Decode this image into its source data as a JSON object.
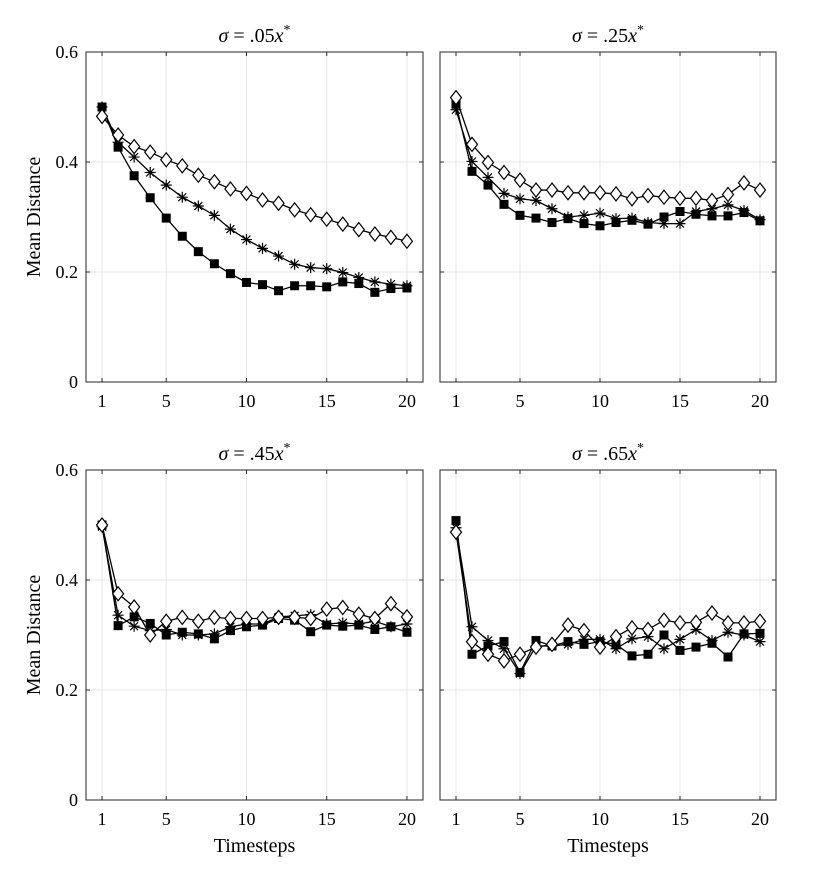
{
  "chart_data": [
    {
      "type": "line",
      "title": {
        "prefix": "σ = .05",
        "var": "x",
        "sup": "*"
      },
      "xlabel": "",
      "ylabel": "Mean Distance",
      "xlim": [
        0,
        21
      ],
      "ylim": [
        0,
        0.6
      ],
      "xticks": [
        1,
        5,
        10,
        15,
        20
      ],
      "yticks": [
        0,
        0.2,
        0.4,
        0.6
      ],
      "ytick_labels": [
        "0",
        "0.2",
        "0.4",
        "0.6"
      ],
      "grid": true,
      "x": [
        1,
        2,
        3,
        4,
        5,
        6,
        7,
        8,
        9,
        10,
        11,
        12,
        13,
        14,
        15,
        16,
        17,
        18,
        19,
        20
      ],
      "series": [
        {
          "marker": "square",
          "values": [
            0.5,
            0.427,
            0.375,
            0.335,
            0.298,
            0.265,
            0.237,
            0.215,
            0.197,
            0.181,
            0.177,
            0.166,
            0.175,
            0.175,
            0.173,
            0.182,
            0.179,
            0.163,
            0.17,
            0.171
          ]
        },
        {
          "marker": "asterisk",
          "values": [
            0.5,
            0.436,
            0.409,
            0.381,
            0.358,
            0.336,
            0.32,
            0.303,
            0.278,
            0.259,
            0.243,
            0.229,
            0.214,
            0.208,
            0.206,
            0.199,
            0.19,
            0.182,
            0.178,
            0.175
          ]
        },
        {
          "marker": "diamond",
          "values": [
            0.483,
            0.449,
            0.428,
            0.418,
            0.404,
            0.393,
            0.376,
            0.364,
            0.351,
            0.343,
            0.331,
            0.325,
            0.313,
            0.304,
            0.296,
            0.287,
            0.277,
            0.269,
            0.263,
            0.256
          ]
        }
      ]
    },
    {
      "type": "line",
      "title": {
        "prefix": "σ = .25",
        "var": "x",
        "sup": "*"
      },
      "xlabel": "",
      "ylabel": "",
      "xlim": [
        0,
        21
      ],
      "ylim": [
        0,
        0.6
      ],
      "xticks": [
        1,
        5,
        10,
        15,
        20
      ],
      "yticks": [
        0,
        0.2,
        0.4,
        0.6
      ],
      "ytick_labels": [],
      "grid": true,
      "x": [
        1,
        2,
        3,
        4,
        5,
        6,
        7,
        8,
        9,
        10,
        11,
        12,
        13,
        14,
        15,
        16,
        17,
        18,
        19,
        20
      ],
      "series": [
        {
          "marker": "square",
          "values": [
            0.505,
            0.383,
            0.358,
            0.323,
            0.303,
            0.298,
            0.29,
            0.297,
            0.288,
            0.284,
            0.29,
            0.294,
            0.287,
            0.3,
            0.31,
            0.305,
            0.302,
            0.302,
            0.308,
            0.293
          ]
        },
        {
          "marker": "asterisk",
          "values": [
            0.495,
            0.401,
            0.372,
            0.343,
            0.333,
            0.33,
            0.315,
            0.3,
            0.303,
            0.307,
            0.297,
            0.298,
            0.29,
            0.288,
            0.288,
            0.31,
            0.315,
            0.322,
            0.312,
            0.295
          ]
        },
        {
          "marker": "diamond",
          "values": [
            0.517,
            0.432,
            0.399,
            0.381,
            0.367,
            0.349,
            0.349,
            0.344,
            0.344,
            0.344,
            0.342,
            0.333,
            0.339,
            0.336,
            0.334,
            0.334,
            0.33,
            0.341,
            0.362,
            0.349
          ]
        }
      ]
    },
    {
      "type": "line",
      "title": {
        "prefix": "σ = .45",
        "var": "x",
        "sup": "*"
      },
      "xlabel": "Timesteps",
      "ylabel": "Mean Distance",
      "xlim": [
        0,
        21
      ],
      "ylim": [
        0,
        0.6
      ],
      "xticks": [
        1,
        5,
        10,
        15,
        20
      ],
      "yticks": [
        0,
        0.2,
        0.4,
        0.6
      ],
      "ytick_labels": [
        "0",
        "0.2",
        "0.4",
        "0.6"
      ],
      "grid": true,
      "x": [
        1,
        2,
        3,
        4,
        5,
        6,
        7,
        8,
        9,
        10,
        11,
        12,
        13,
        14,
        15,
        16,
        17,
        18,
        19,
        20
      ],
      "series": [
        {
          "marker": "square",
          "values": [
            0.5,
            0.317,
            0.333,
            0.321,
            0.3,
            0.305,
            0.302,
            0.293,
            0.308,
            0.315,
            0.318,
            0.33,
            0.327,
            0.306,
            0.318,
            0.316,
            0.318,
            0.31,
            0.315,
            0.305
          ]
        },
        {
          "marker": "asterisk",
          "values": [
            0.497,
            0.336,
            0.316,
            0.308,
            0.31,
            0.3,
            0.3,
            0.302,
            0.315,
            0.32,
            0.32,
            0.333,
            0.335,
            0.337,
            0.32,
            0.322,
            0.32,
            0.325,
            0.315,
            0.32
          ]
        },
        {
          "marker": "diamond",
          "values": [
            0.5,
            0.375,
            0.351,
            0.3,
            0.325,
            0.332,
            0.325,
            0.332,
            0.33,
            0.33,
            0.33,
            0.332,
            0.332,
            0.33,
            0.347,
            0.35,
            0.338,
            0.33,
            0.357,
            0.333
          ]
        }
      ]
    },
    {
      "type": "line",
      "title": {
        "prefix": "σ = .65",
        "var": "x",
        "sup": "*"
      },
      "xlabel": "Timesteps",
      "ylabel": "",
      "xlim": [
        0,
        21
      ],
      "ylim": [
        0,
        0.6
      ],
      "xticks": [
        1,
        5,
        10,
        15,
        20
      ],
      "yticks": [
        0,
        0.2,
        0.4,
        0.6
      ],
      "ytick_labels": [],
      "grid": true,
      "x": [
        1,
        2,
        3,
        4,
        5,
        6,
        7,
        8,
        9,
        10,
        11,
        12,
        13,
        14,
        15,
        16,
        17,
        18,
        19,
        20
      ],
      "series": [
        {
          "marker": "square",
          "values": [
            0.508,
            0.265,
            0.28,
            0.288,
            0.232,
            0.29,
            0.28,
            0.288,
            0.283,
            0.288,
            0.283,
            0.262,
            0.265,
            0.3,
            0.272,
            0.278,
            0.285,
            0.26,
            0.302,
            0.303
          ]
        },
        {
          "marker": "asterisk",
          "values": [
            0.495,
            0.315,
            0.29,
            0.275,
            0.23,
            0.28,
            0.28,
            0.283,
            0.292,
            0.292,
            0.275,
            0.293,
            0.297,
            0.275,
            0.292,
            0.31,
            0.29,
            0.305,
            0.3,
            0.288
          ]
        },
        {
          "marker": "diamond",
          "values": [
            0.487,
            0.288,
            0.265,
            0.253,
            0.265,
            0.278,
            0.283,
            0.318,
            0.308,
            0.278,
            0.297,
            0.313,
            0.31,
            0.327,
            0.322,
            0.323,
            0.34,
            0.322,
            0.322,
            0.325
          ]
        }
      ]
    }
  ]
}
